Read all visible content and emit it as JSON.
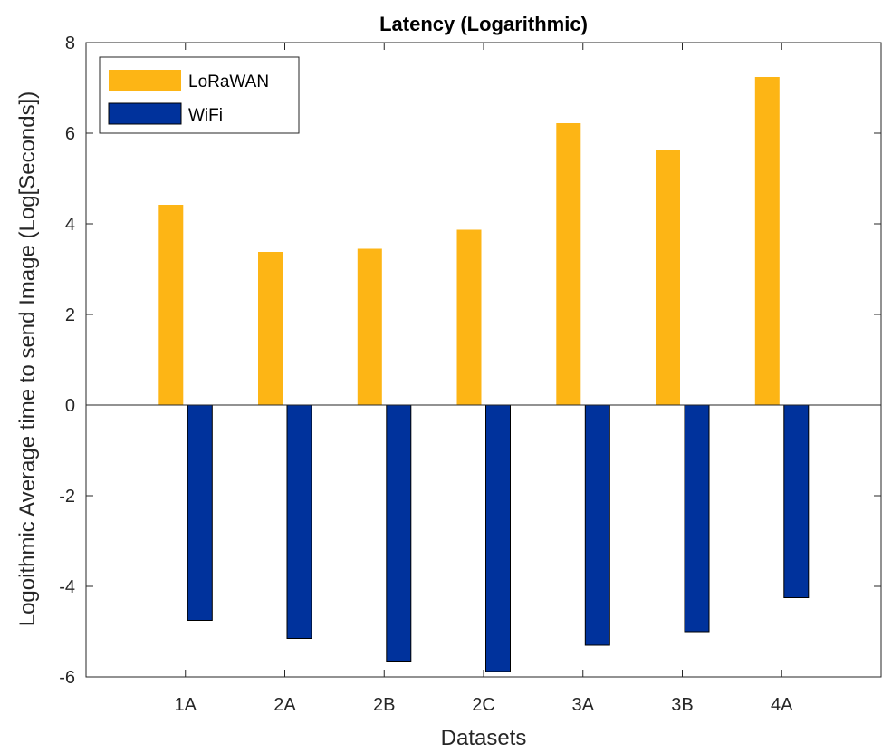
{
  "chart_data": {
    "type": "bar",
    "title": "Latency (Logarithmic)",
    "xlabel": "Datasets",
    "ylabel": "Logoithmic Average time to send Image (Log[Seconds])",
    "categories": [
      "1A",
      "2A",
      "2B",
      "2C",
      "3A",
      "3B",
      "4A"
    ],
    "ylim": [
      -6,
      8
    ],
    "yticks": [
      -6,
      -4,
      -2,
      0,
      2,
      4,
      6,
      8
    ],
    "grid": false,
    "legend_position": "top-left",
    "series": [
      {
        "name": "LoRaWAN",
        "color": "#FDB515",
        "values": [
          4.42,
          3.38,
          3.45,
          3.87,
          6.22,
          5.63,
          7.24
        ]
      },
      {
        "name": "WiFi",
        "color": "#00329C",
        "values": [
          -4.75,
          -5.15,
          -5.65,
          -5.88,
          -5.3,
          -5.0,
          -4.25
        ]
      }
    ]
  }
}
